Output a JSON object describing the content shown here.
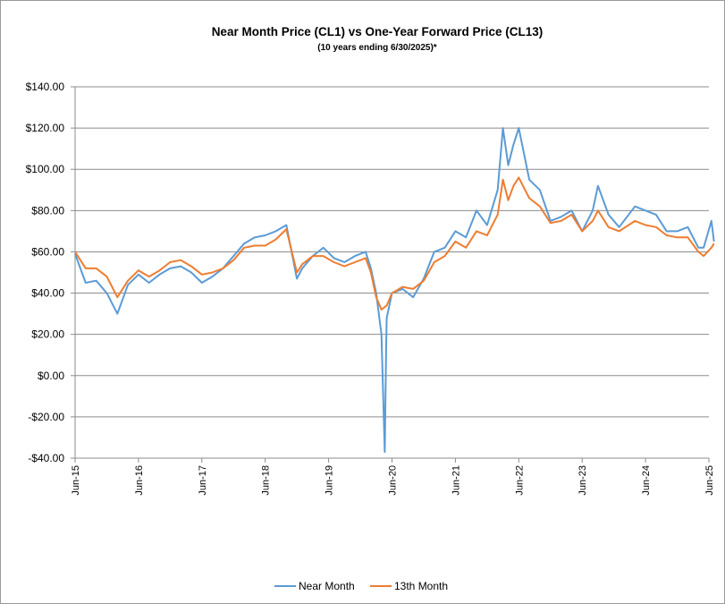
{
  "chart_data": {
    "type": "line",
    "title": "Near Month Price (CL1) vs One-Year Forward Price (CL13)",
    "subtitle": "(10 years ending  6/30/2025)*",
    "xlabel": "",
    "ylabel": "",
    "ylim": [
      -40,
      140
    ],
    "y_ticks": [
      140,
      120,
      100,
      80,
      60,
      40,
      20,
      0,
      -20,
      -40
    ],
    "y_tick_labels": [
      "$140.00",
      "$120.00",
      "$100.00",
      "$80.00",
      "$60.00",
      "$40.00",
      "$20.00",
      "$0.00",
      "-$20.00",
      "-$40.00"
    ],
    "x_range": [
      "2015-06",
      "2025-06"
    ],
    "x_tick_labels": [
      "Jun-15",
      "Jun-16",
      "Jun-17",
      "Jun-18",
      "Jun-19",
      "Jun-20",
      "Jun-21",
      "Jun-22",
      "Jun-23",
      "Jun-24",
      "Jun-25"
    ],
    "x_tick_values": [
      "2015-06",
      "2016-06",
      "2017-06",
      "2018-06",
      "2019-06",
      "2020-06",
      "2021-06",
      "2022-06",
      "2023-06",
      "2024-06",
      "2025-06"
    ],
    "grid": "horizontal",
    "legend_position": "bottom",
    "series": [
      {
        "name": "Near Month",
        "color": "#5b9bd5",
        "x": [
          "2015-06",
          "2015-08",
          "2015-10",
          "2015-12",
          "2016-02",
          "2016-04",
          "2016-06",
          "2016-08",
          "2016-10",
          "2016-12",
          "2017-02",
          "2017-04",
          "2017-06",
          "2017-08",
          "2017-10",
          "2017-12",
          "2018-02",
          "2018-04",
          "2018-06",
          "2018-08",
          "2018-10",
          "2018-12",
          "2019-01",
          "2019-03",
          "2019-05",
          "2019-07",
          "2019-09",
          "2019-11",
          "2020-01",
          "2020-02",
          "2020-03",
          "2020-04-01",
          "2020-04-20",
          "2020-04-28",
          "2020-05",
          "2020-06",
          "2020-08",
          "2020-10",
          "2020-12",
          "2021-02",
          "2021-04",
          "2021-06",
          "2021-08",
          "2021-10",
          "2021-12",
          "2022-02",
          "2022-03",
          "2022-04",
          "2022-05",
          "2022-06",
          "2022-08",
          "2022-10",
          "2022-12",
          "2023-02",
          "2023-04",
          "2023-06",
          "2023-08",
          "2023-09",
          "2023-11",
          "2024-01",
          "2024-04",
          "2024-06",
          "2024-08",
          "2024-10",
          "2024-12",
          "2025-02",
          "2025-04",
          "2025-05",
          "2025-06-15",
          "2025-06-30"
        ],
        "values": [
          59,
          45,
          46,
          40,
          30,
          44,
          49,
          45,
          49,
          52,
          53,
          50,
          45,
          48,
          52,
          58,
          64,
          67,
          68,
          70,
          73,
          47,
          52,
          58,
          62,
          57,
          55,
          58,
          60,
          52,
          40,
          20,
          -37,
          15,
          28,
          40,
          42,
          38,
          47,
          60,
          62,
          70,
          67,
          80,
          73,
          90,
          120,
          102,
          112,
          120,
          95,
          90,
          75,
          77,
          80,
          70,
          80,
          92,
          78,
          72,
          82,
          80,
          78,
          70,
          70,
          72,
          62,
          62,
          75,
          65
        ]
      },
      {
        "name": "13th Month",
        "color": "#ed7d31",
        "x": [
          "2015-06",
          "2015-08",
          "2015-10",
          "2015-12",
          "2016-02",
          "2016-04",
          "2016-06",
          "2016-08",
          "2016-10",
          "2016-12",
          "2017-02",
          "2017-04",
          "2017-06",
          "2017-08",
          "2017-10",
          "2017-12",
          "2018-02",
          "2018-04",
          "2018-06",
          "2018-08",
          "2018-10",
          "2018-12",
          "2019-01",
          "2019-03",
          "2019-05",
          "2019-07",
          "2019-09",
          "2019-11",
          "2020-01",
          "2020-02",
          "2020-03",
          "2020-04",
          "2020-05",
          "2020-06",
          "2020-08",
          "2020-10",
          "2020-12",
          "2021-02",
          "2021-04",
          "2021-06",
          "2021-08",
          "2021-10",
          "2021-12",
          "2022-02",
          "2022-03",
          "2022-04",
          "2022-05",
          "2022-06",
          "2022-08",
          "2022-10",
          "2022-12",
          "2023-02",
          "2023-04",
          "2023-06",
          "2023-08",
          "2023-09",
          "2023-11",
          "2024-01",
          "2024-04",
          "2024-06",
          "2024-08",
          "2024-10",
          "2024-12",
          "2025-02",
          "2025-04",
          "2025-05",
          "2025-06-15",
          "2025-06-30"
        ],
        "values": [
          60,
          52,
          52,
          48,
          38,
          46,
          51,
          48,
          51,
          55,
          56,
          53,
          49,
          50,
          52,
          56,
          62,
          63,
          63,
          66,
          71,
          50,
          54,
          58,
          58,
          55,
          53,
          55,
          57,
          50,
          38,
          32,
          34,
          40,
          43,
          42,
          46,
          55,
          58,
          65,
          62,
          70,
          68,
          78,
          95,
          85,
          92,
          96,
          86,
          82,
          74,
          75,
          78,
          70,
          75,
          80,
          72,
          70,
          75,
          73,
          72,
          68,
          67,
          67,
          60,
          58,
          62,
          64
        ]
      }
    ]
  }
}
